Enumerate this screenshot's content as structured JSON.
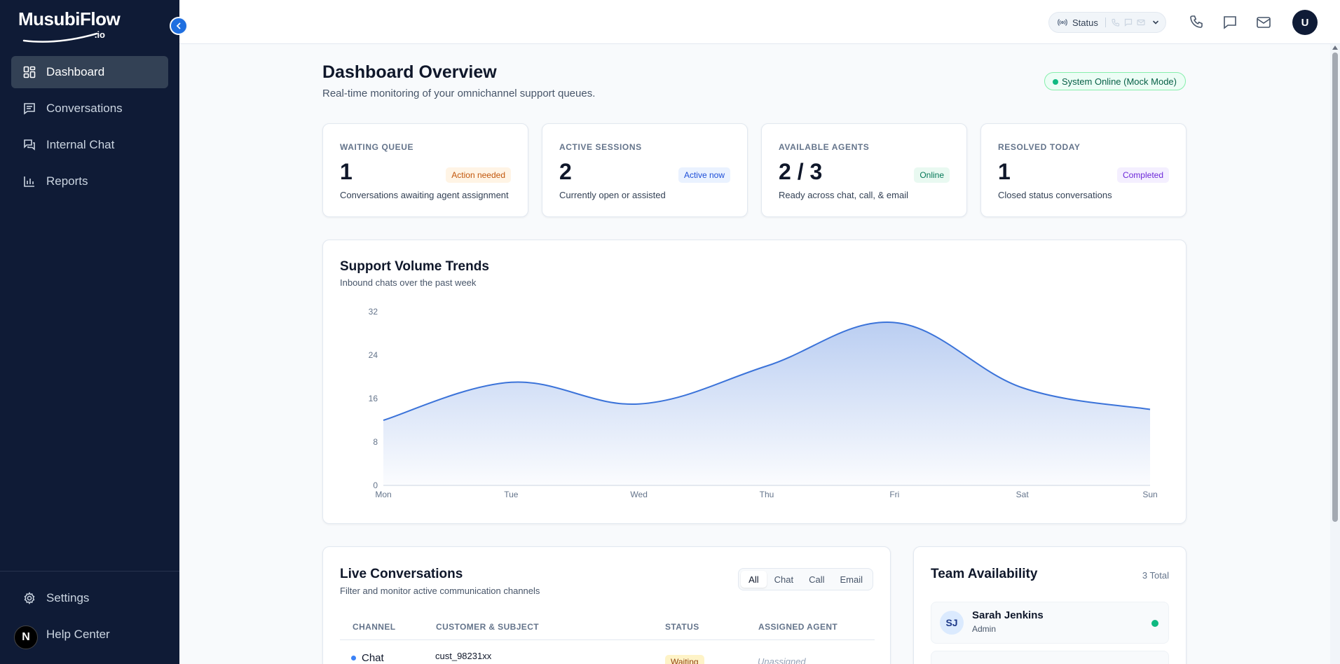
{
  "brand": {
    "name": "MusubiFlow",
    "suffix": ".io"
  },
  "sidebar": {
    "items": [
      {
        "label": "Dashboard",
        "icon": "dashboard-icon",
        "active": true
      },
      {
        "label": "Conversations",
        "icon": "conversations-icon",
        "active": false
      },
      {
        "label": "Internal Chat",
        "icon": "internal-chat-icon",
        "active": false
      },
      {
        "label": "Reports",
        "icon": "reports-icon",
        "active": false
      }
    ],
    "bottom": [
      {
        "label": "Settings",
        "icon": "gear-icon"
      },
      {
        "label": "Help Center",
        "icon": "help-icon"
      }
    ],
    "badge": "N"
  },
  "header": {
    "status_label": "Status",
    "avatar_initial": "U"
  },
  "page": {
    "title": "Dashboard Overview",
    "subtitle": "Real-time monitoring of your omnichannel support queues.",
    "system_status": "System Online (Mock Mode)"
  },
  "stats": [
    {
      "label": "WAITING QUEUE",
      "value": "1",
      "badge": "Action needed",
      "badge_bg": "#fff4e5",
      "badge_fg": "#c2570c",
      "desc": "Conversations awaiting agent assignment"
    },
    {
      "label": "ACTIVE SESSIONS",
      "value": "2",
      "badge": "Active now",
      "badge_bg": "#eaf2ff",
      "badge_fg": "#1d4ed8",
      "desc": "Currently open or assisted"
    },
    {
      "label": "AVAILABLE AGENTS",
      "value": "2 / 3",
      "badge": "Online",
      "badge_bg": "#e9f9f1",
      "badge_fg": "#047857",
      "desc": "Ready across chat, call, & email"
    },
    {
      "label": "RESOLVED TODAY",
      "value": "1",
      "badge": "Completed",
      "badge_bg": "#f4efff",
      "badge_fg": "#6d28d9",
      "desc": "Closed status conversations"
    }
  ],
  "chart": {
    "title": "Support Volume Trends",
    "subtitle": "Inbound chats over the past week"
  },
  "chart_data": {
    "type": "area",
    "categories": [
      "Mon",
      "Tue",
      "Wed",
      "Thu",
      "Fri",
      "Sat",
      "Sun"
    ],
    "values": [
      12,
      19,
      15,
      22,
      30,
      18,
      14
    ],
    "yticks": [
      0,
      8,
      16,
      24,
      32
    ],
    "ylim": [
      0,
      32
    ],
    "color": "#3b73d9",
    "grid": false
  },
  "live": {
    "title": "Live Conversations",
    "subtitle": "Filter and monitor active communication channels",
    "filters": [
      "All",
      "Chat",
      "Call",
      "Email"
    ],
    "active_filter": "All",
    "columns": [
      "CHANNEL",
      "CUSTOMER & SUBJECT",
      "STATUS",
      "ASSIGNED AGENT"
    ],
    "rows": [
      {
        "channel": "Chat",
        "customer": "cust_98231xx",
        "status": "Waiting",
        "agent": "Unassigned"
      }
    ]
  },
  "team": {
    "title": "Team Availability",
    "total": "3 Total",
    "members": [
      {
        "initials": "SJ",
        "name": "Sarah Jenkins",
        "role": "Admin",
        "status_color": "#10b981"
      }
    ]
  }
}
